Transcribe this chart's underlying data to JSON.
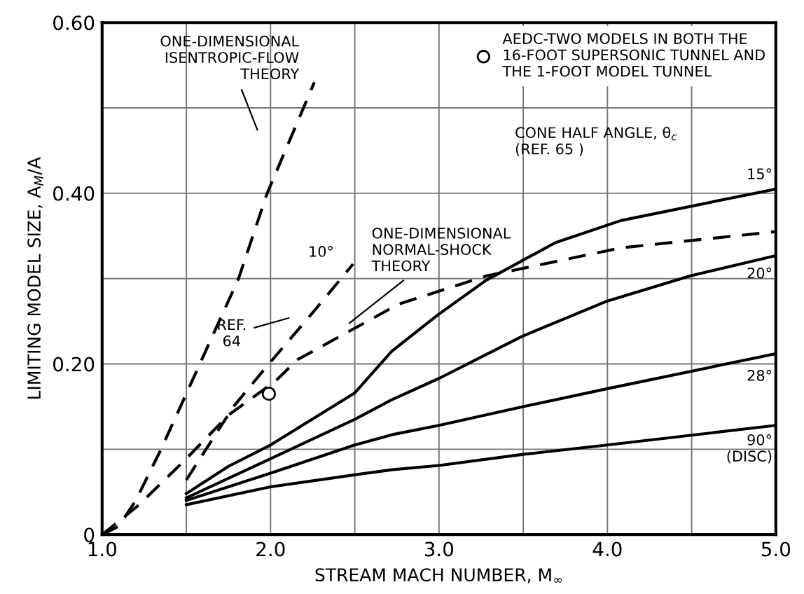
{
  "chart_data": {
    "type": "line",
    "xlabel": "STREAM MACH NUMBER, M$_{∞}$",
    "ylabel": "LIMITING MODEL SIZE, A$_{M}$/A",
    "xlim": [
      1.0,
      5.0
    ],
    "ylim": [
      0,
      0.6
    ],
    "xticks": [
      {
        "value": 1.0,
        "label": "1.0"
      },
      {
        "value": 1.5,
        "label": null
      },
      {
        "value": 2.0,
        "label": "2.0"
      },
      {
        "value": 2.5,
        "label": null
      },
      {
        "value": 3.0,
        "label": "3.0"
      },
      {
        "value": 3.5,
        "label": null
      },
      {
        "value": 4.0,
        "label": "4.0"
      },
      {
        "value": 4.5,
        "label": null
      },
      {
        "value": 5.0,
        "label": "5.0"
      }
    ],
    "yticks": [
      0,
      {
        "value": 0.1,
        "label": null
      },
      {
        "value": 0.2,
        "label": "0.20"
      },
      {
        "value": 0.3,
        "label": null
      },
      {
        "value": 0.4,
        "label": "0.40"
      },
      {
        "value": 0.5,
        "label": null
      },
      {
        "value": 0.6,
        "label": "0.60"
      }
    ],
    "grid": true,
    "legend": "top right",
    "series": [
      {
        "name": "ONE-DIMENSIONAL\nISENTROPIC-FLOW\nTHEORY",
        "color": "#000000",
        "line_style": "dashed",
        "x": [
          1.0,
          1.1,
          1.2,
          1.35,
          1.58,
          1.81,
          1.98,
          2.26
        ],
        "values": [
          0,
          0.01,
          0.04,
          0.1,
          0.2,
          0.3,
          0.4,
          0.53
        ]
      },
      {
        "name": "10°",
        "color": "#000000",
        "line_style": "dashed",
        "x": [
          1.5,
          1.78,
          1.99,
          2.25,
          2.49
        ],
        "values": [
          0.064,
          0.15,
          0.2,
          0.26,
          0.317
        ]
      },
      {
        "name": "ONE-DIMENSIONAL\nNORMAL-SHOCK\nTHEORY",
        "color": "#000000",
        "line_style": "dashed",
        "x": [
          1.0,
          1.22,
          1.49,
          1.75,
          2.03,
          2.16,
          2.76,
          3.28,
          4.08,
          5.0
        ],
        "values": [
          0,
          0.035,
          0.087,
          0.14,
          0.18,
          0.205,
          0.27,
          0.303,
          0.336,
          0.355
        ]
      },
      {
        "name": "15°",
        "color": "#000000",
        "line_style": "solid",
        "x": [
          1.5,
          1.75,
          2.0,
          2.5,
          2.72,
          2.99,
          3.28,
          3.69,
          4.08,
          5.0
        ],
        "values": [
          0.048,
          0.08,
          0.105,
          0.166,
          0.215,
          0.257,
          0.298,
          0.342,
          0.368,
          0.405
        ]
      },
      {
        "name": "20°",
        "color": "#000000",
        "line_style": "solid",
        "x": [
          1.5,
          2.0,
          2.5,
          2.72,
          3.0,
          3.49,
          3.99,
          4.49,
          5.0
        ],
        "values": [
          0.043,
          0.089,
          0.135,
          0.158,
          0.183,
          0.232,
          0.273,
          0.303,
          0.327
        ]
      },
      {
        "name": "28°",
        "color": "#000000",
        "line_style": "solid",
        "x": [
          1.5,
          2.0,
          2.5,
          2.72,
          3.0,
          3.5,
          4.0,
          5.0
        ],
        "values": [
          0.04,
          0.072,
          0.105,
          0.117,
          0.128,
          0.15,
          0.171,
          0.212
        ]
      },
      {
        "name": "90°\n(DISC)",
        "color": "#000000",
        "line_style": "solid",
        "x": [
          1.5,
          2.0,
          2.5,
          2.72,
          3.0,
          3.5,
          4.0,
          5.0
        ],
        "values": [
          0.035,
          0.056,
          0.07,
          0.076,
          0.081,
          0.094,
          0.105,
          0.128
        ]
      },
      {
        "name": "AEDC-TWO MODELS IN BOTH THE\n16-FOOT SUPERSONIC TUNNEL AND\nTHE 1-FOOT MODEL TUNNEL",
        "type": "scatter",
        "marker": "circle",
        "color": "#000000",
        "x": [
          1.99
        ],
        "values": [
          0.165
        ]
      }
    ],
    "annotations": [
      "REF.\n64",
      "CONE HALF ANGLE, θ$_{c}$\n(REF. 65 )"
    ]
  }
}
